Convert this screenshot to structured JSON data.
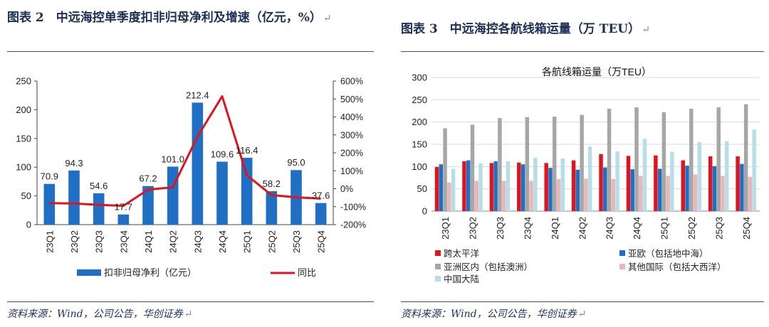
{
  "left": {
    "caption": "图表 2　中远海控单季度扣非归母净利及增速（亿元，%）",
    "return_mark": "↵",
    "source": "资料来源：Wind，公司公告，华创证券",
    "bar_color": "#1f6fc5",
    "line_color": "#e0141e"
  },
  "right": {
    "caption": "图表 3　中远海控各航线箱运量（万 TEU）",
    "return_mark": "↵",
    "source": "资料来源：Wind，公司公告，华创证券"
  },
  "chart_data": [
    {
      "type": "bar",
      "title": "",
      "categories": [
        "23Q1",
        "23Q2",
        "23Q3",
        "23Q4",
        "24Q1",
        "24Q2",
        "24Q3",
        "24Q4",
        "25Q1",
        "25Q2",
        "25Q3",
        "25Q4"
      ],
      "series": [
        {
          "name": "扣非归母净利（亿元）",
          "type": "bar",
          "axis": "left",
          "color": "#1f6fc5",
          "values": [
            70.9,
            94.3,
            54.6,
            17.7,
            67.2,
            101.0,
            212.4,
            109.6,
            116.4,
            58.2,
            95.0,
            37.6
          ],
          "labels": [
            "70.9",
            "94.3",
            "54.6",
            "17.7",
            "67.2",
            "101.0",
            "212.4",
            "109.6",
            "116.4",
            "58.2",
            "95.0",
            "37.6"
          ]
        },
        {
          "name": "同比",
          "type": "line",
          "axis": "right",
          "color": "#e0141e",
          "values": [
            -80,
            -82,
            -90,
            -95,
            -5,
            8,
            290,
            515,
            75,
            -35,
            -48,
            -55
          ]
        }
      ],
      "ylim": [
        0,
        250
      ],
      "yticks": [
        "0",
        "50",
        "100",
        "150",
        "200",
        "250"
      ],
      "ylim_right": [
        -200,
        600
      ],
      "yticks_right": [
        "-200%",
        "-100%",
        "0%",
        "100%",
        "200%",
        "300%",
        "400%",
        "500%",
        "600%"
      ],
      "legend": "bottom",
      "grid": false
    },
    {
      "type": "bar",
      "title": "各航线箱运量（万TEU）",
      "categories": [
        "23Q1",
        "23Q2",
        "23Q3",
        "23Q4",
        "24Q1",
        "24Q2",
        "24Q3",
        "24Q4",
        "25Q1",
        "25Q2",
        "25Q3",
        "25Q4"
      ],
      "series": [
        {
          "name": "跨太平洋",
          "color": "#e0141e",
          "values": [
            99,
            112,
            108,
            109,
            108,
            114,
            128,
            124,
            125,
            114,
            123,
            123
          ]
        },
        {
          "name": "亚欧（包括地中海）",
          "color": "#1f6fc5",
          "values": [
            105,
            114,
            112,
            105,
            97,
            93,
            98,
            94,
            95,
            102,
            101,
            106
          ]
        },
        {
          "name": "亚洲区内（包括澳洲）",
          "color": "#a6a6a6",
          "values": [
            186,
            194,
            209,
            211,
            212,
            216,
            230,
            233,
            222,
            230,
            233,
            240
          ]
        },
        {
          "name": "其他国际（包括大西洋）",
          "color": "#e6b8b7",
          "values": [
            64,
            68,
            68,
            68,
            72,
            73,
            72,
            79,
            79,
            82,
            79,
            77
          ]
        },
        {
          "name": "中国大陆",
          "color": "#b7dee8",
          "values": [
            95,
            107,
            112,
            120,
            118,
            145,
            134,
            162,
            133,
            155,
            157,
            183
          ]
        }
      ],
      "ylim": [
        0,
        300
      ],
      "yticks": [
        "0",
        "50",
        "100",
        "150",
        "200",
        "250",
        "300"
      ],
      "legend": "bottom",
      "grid": true
    }
  ]
}
